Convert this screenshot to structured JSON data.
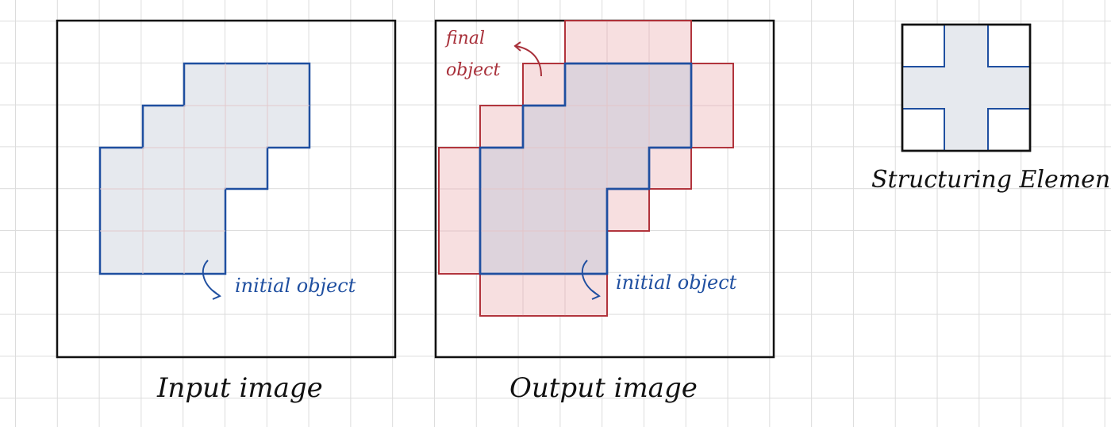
{
  "panels": {
    "input": {
      "caption": "Input image",
      "annotation": "initial object"
    },
    "output": {
      "caption": "Output image",
      "annotation_initial": "initial object",
      "annotation_final_line1": "final",
      "annotation_final_line2": "object"
    },
    "structuring_element": {
      "caption": "Structuring Element"
    }
  },
  "colors": {
    "grid": "#dcdcdc",
    "frame": "#111111",
    "initial_outline": "#1f4fa0",
    "initial_fill": "#e6e9ee",
    "final_outline": "#b03038",
    "final_fill": "#f7dfe0",
    "overlap_fill": "#ddd3dc",
    "annotation_blue": "#1f4fa0",
    "annotation_red": "#a8303a"
  },
  "icons": [
    "curved-arrow-icon"
  ]
}
